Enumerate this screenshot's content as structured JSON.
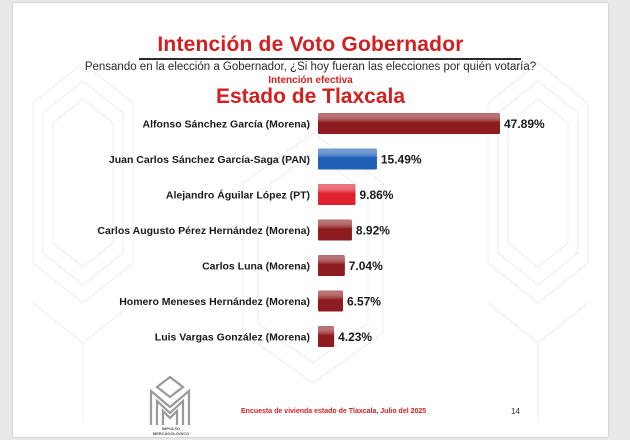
{
  "title": "Intención de Voto Gobernador",
  "subtitle": "Pensando en la elección a Gobernador, ¿Si hoy fueran las elecciones por quién votaría?",
  "subtitle2": "Intención efectiva",
  "state_title": "Estado de  Tlaxcala",
  "footer": {
    "note": "Encuesta de vivienda estado de Tlaxcala, Julio  del 2025",
    "page": "14",
    "logo_text": "IMPULSO MERCADOLOGICO"
  },
  "colors": {
    "Morena": "#8e1b1f",
    "PAN": "#1f5fb8",
    "PT": "#e0202e",
    "title": "#d21f1f"
  },
  "chart_data": {
    "type": "bar",
    "orientation": "horizontal",
    "categories": [
      "Alfonso Sánchez García (Morena)",
      "Juan Carlos Sánchez García-Saga (PAN)",
      "Alejandro Águilar López (PT)",
      "Carlos Augusto Pérez Hernández (Morena)",
      "Carlos Luna (Morena)",
      "Homero Meneses Hernández (Morena)",
      "Luis Vargas González (Morena)"
    ],
    "values": [
      47.89,
      15.49,
      9.86,
      8.92,
      7.04,
      6.57,
      4.23
    ],
    "value_labels": [
      "47.89%",
      "15.49%",
      "9.86%",
      "8.92%",
      "7.04%",
      "6.57%",
      "4.23%"
    ],
    "party": [
      "Morena",
      "PAN",
      "PT",
      "Morena",
      "Morena",
      "Morena",
      "Morena"
    ],
    "xlim": [
      0,
      50
    ],
    "grid": false,
    "legend": "none"
  }
}
